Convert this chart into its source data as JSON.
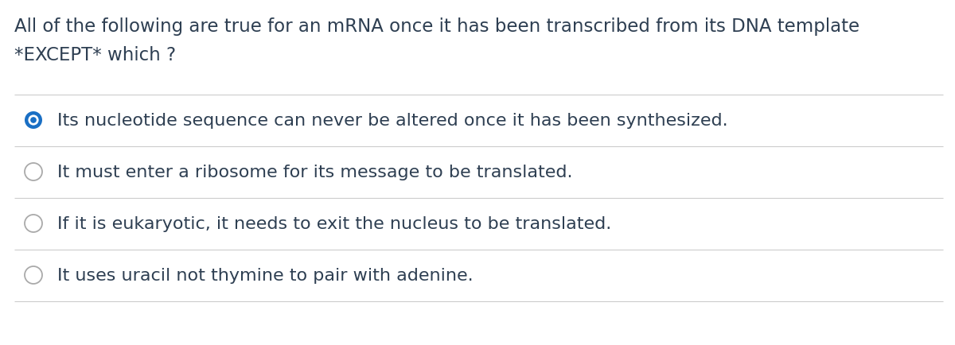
{
  "background_color": "#ffffff",
  "title_line1": "All of the following are true for an mRNA once it has been transcribed from its DNA template",
  "title_line2": "*EXCEPT* which ?",
  "title_color": "#2e3f52",
  "title_fontsize": 16.5,
  "options": [
    "Its nucleotide sequence can never be altered once it has been synthesized.",
    "It must enter a ribosome for its message to be translated.",
    "If it is eukaryotic, it needs to exit the nucleus to be translated.",
    "It uses uracil not thymine to pair with adenine."
  ],
  "option_color": "#2e3f52",
  "option_fontsize": 16.0,
  "selected_index": 0,
  "selected_circle_color": "#1a6fc4",
  "unselected_circle_color": "#aaaaaa",
  "separator_color": "#cccccc",
  "separator_linewidth": 0.8
}
